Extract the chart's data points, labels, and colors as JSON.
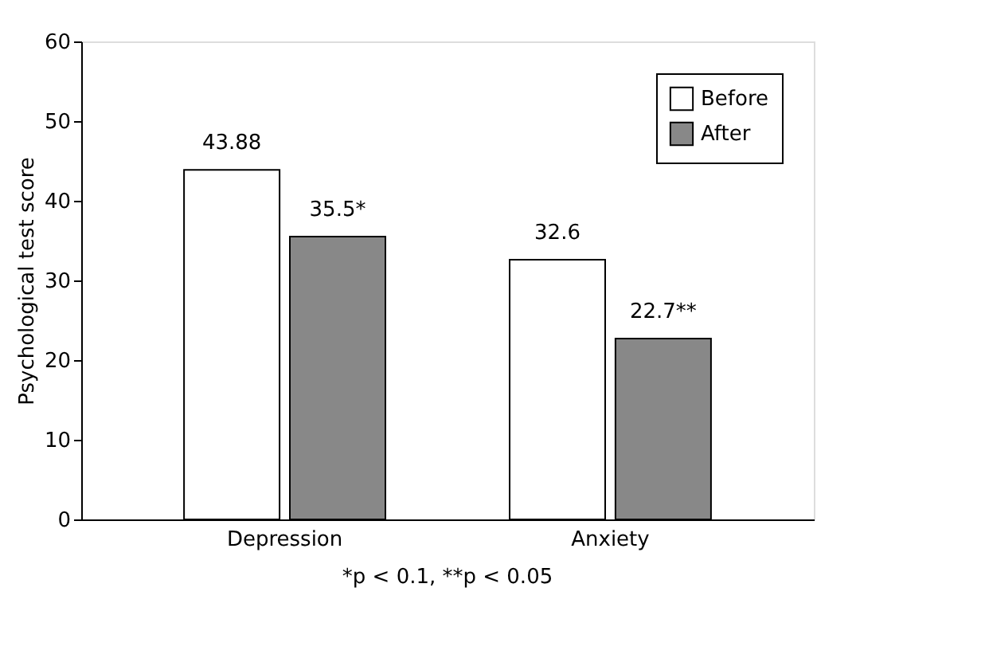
{
  "chart_data": {
    "type": "bar",
    "ylabel": "Psychological test score",
    "categories": [
      "Depression",
      "Anxiety"
    ],
    "series": [
      {
        "name": "Before",
        "color": "#ffffff",
        "values": [
          43.88,
          32.6
        ],
        "value_labels": [
          "43.88",
          "32.6"
        ]
      },
      {
        "name": "After",
        "color": "#888888",
        "values": [
          35.5,
          22.7
        ],
        "value_labels": [
          "35.5*",
          "22.7**"
        ]
      }
    ],
    "ylim": [
      0,
      60
    ],
    "yticks": [
      0,
      10,
      20,
      30,
      40,
      50,
      60
    ],
    "grid": false,
    "legend": "top right",
    "annotations": [
      "*p < 0.1, **p < 0.05"
    ]
  }
}
